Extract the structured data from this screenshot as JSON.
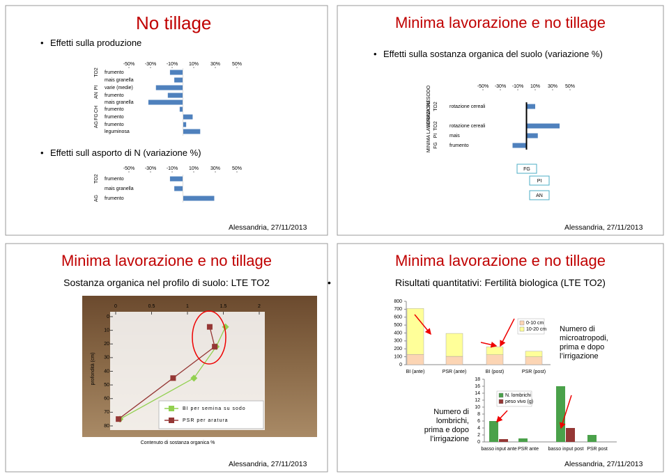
{
  "slides": [
    {
      "title": "No tillage",
      "bullets": [
        "Effetti sulla produzione",
        "Effetti sull asporto di N (variazione %)"
      ],
      "footer": "Alessandria, 27/11/2013",
      "charts": [
        {
          "type": "bar",
          "orientation": "horizontal",
          "color": "#4f81bd",
          "xlim": [
            -50,
            50
          ],
          "xticks": [
            {
              "value": -50,
              "label": "-50%"
            },
            {
              "value": -30,
              "label": "-30%"
            },
            {
              "value": -10,
              "label": "-10%"
            },
            {
              "value": 10,
              "label": "10%"
            },
            {
              "value": 30,
              "label": "30%"
            },
            {
              "value": 50,
              "label": "50%"
            }
          ],
          "row_groups": [
            "TO2",
            null,
            "PI",
            "AN",
            null,
            "CH",
            "FG",
            "AG",
            null
          ],
          "categories": [
            "frumento",
            "mais granella",
            "varie (medie)",
            "frumento",
            "mais granella",
            "frumento",
            "frumento",
            "frumento",
            "leguminosa"
          ],
          "values": [
            -12,
            -8,
            -25,
            -14,
            -32,
            -3,
            9,
            3,
            16
          ]
        },
        {
          "type": "bar",
          "orientation": "horizontal",
          "color": "#4f81bd",
          "xlim": [
            -50,
            50
          ],
          "xticks": [
            {
              "value": -50,
              "label": "-50%"
            },
            {
              "value": -30,
              "label": "-30%"
            },
            {
              "value": -10,
              "label": "-10%"
            },
            {
              "value": 10,
              "label": "10%"
            },
            {
              "value": 30,
              "label": "30%"
            },
            {
              "value": 50,
              "label": "50%"
            }
          ],
          "row_groups": [
            "TO2",
            null,
            "AG"
          ],
          "categories": [
            "frumento",
            "mais granella",
            "frumento"
          ],
          "values": [
            -12,
            -8,
            29
          ]
        }
      ]
    },
    {
      "title": "Minima lavorazione e no tillage",
      "bullets": [
        "Effetti sulla sostanza organica del suolo (variazione %)"
      ],
      "footer": "Alessandria, 27/11/2013",
      "charts": [
        {
          "type": "bar",
          "orientation": "horizontal",
          "color": "#4f81bd",
          "xlim": [
            -50,
            50
          ],
          "xticks": [
            {
              "value": -50,
              "label": "-50%"
            },
            {
              "value": -30,
              "label": "-30%"
            },
            {
              "value": -10,
              "label": "-10%"
            },
            {
              "value": 10,
              "label": "10%"
            },
            {
              "value": 30,
              "label": "30%"
            },
            {
              "value": 50,
              "label": "50%"
            }
          ],
          "sections": [
            "SEMINA SU SODO",
            "MINIMA LAVORAZIONE",
            null,
            null
          ],
          "row_groups": [
            "TO2",
            "TO2",
            "PI",
            "FG"
          ],
          "categories": [
            "rotazione cereali",
            "rotazione cereali",
            "mais",
            "frumento"
          ],
          "values": [
            10,
            38,
            13,
            -16
          ]
        }
      ],
      "markers": [
        "FG",
        "PI",
        "AN"
      ]
    },
    {
      "title": "Minima lavorazione e no tillage",
      "subtitle": "Sostanza organica nel profilo di suolo: LTE TO2",
      "footer": "Alessandria, 27/11/2013",
      "charts": [
        {
          "type": "line",
          "xlabel": "Contenuto di sostanza organica %",
          "ylabel": "profondità (cm)",
          "xlim": [
            0,
            2
          ],
          "xticks": [
            0,
            0.5,
            1,
            1.5,
            2
          ],
          "ylim": [
            0,
            80
          ],
          "yticks": [
            0,
            10,
            20,
            30,
            40,
            50,
            60,
            70,
            80
          ],
          "series": [
            {
              "name": "BI per semina su sodo",
              "color": "#92d050",
              "x": [
                1.53,
                1.4,
                1.09,
                0.06
              ],
              "values": [
                7.5,
                22,
                45,
                75
              ]
            },
            {
              "name": "PSR per aratura",
              "color": "#953735",
              "x": [
                1.31,
                1.38,
                0.8,
                0.04
              ],
              "values": [
                7.5,
                22,
                45,
                75
              ]
            }
          ]
        }
      ]
    },
    {
      "title": "Minima lavorazione e no tillage",
      "subtitle": "Risultati quantitativi: Fertilità biologica (LTE TO2)",
      "footer": "Alessandria, 27/11/2013",
      "notes": [
        "Numero di microatropodi, prima e dopo l’irrigazione",
        "Numero di lombrichi, prima e dopo l’irrigazione"
      ],
      "charts": [
        {
          "type": "stacked-bar",
          "ylim": [
            0,
            800
          ],
          "yticks": [
            0,
            100,
            200,
            300,
            400,
            500,
            600,
            700,
            800
          ],
          "categories": [
            "BI (ante)",
            "PSR (ante)",
            "BI (post)",
            "PSR (post)"
          ],
          "series": [
            {
              "name": "0-10 cm",
              "color": "#fcd5b4",
              "values": [
                130,
                105,
                125,
                100
              ]
            },
            {
              "name": "10-20 cm",
              "color": "#ffff99",
              "values": [
                580,
                290,
                100,
                70
              ]
            }
          ]
        },
        {
          "type": "bar",
          "ylim": [
            0,
            18
          ],
          "yticks": [
            0,
            2,
            4,
            6,
            8,
            10,
            12,
            14,
            16,
            18
          ],
          "categories": [
            "basso input ante",
            "PSR ante",
            "basso input post",
            "PSR post"
          ],
          "series": [
            {
              "name": "N. lombrichi",
              "color": "#4aa14a",
              "values": [
                6,
                1,
                16,
                2
              ]
            },
            {
              "name": "peso vivo (g)",
              "color": "#953735",
              "values": [
                0.8,
                0,
                4,
                0
              ]
            }
          ]
        }
      ]
    }
  ]
}
